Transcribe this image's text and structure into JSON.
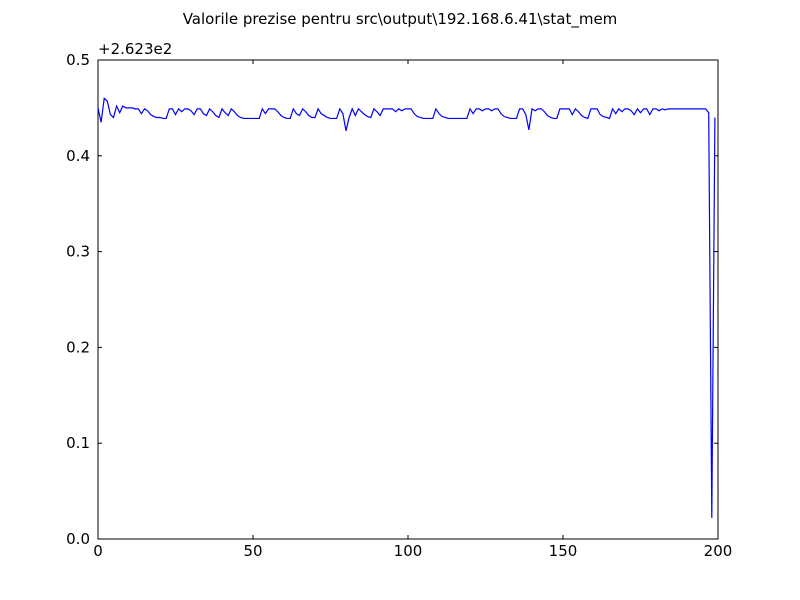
{
  "chart_data": {
    "type": "line",
    "title": "Valorile prezise pentru src\\output\\192.168.6.41\\stat_mem",
    "offset_label": "+2.623e2",
    "x": [
      0,
      1,
      2,
      3,
      4,
      5,
      6,
      7,
      8,
      9,
      10,
      11,
      12,
      13,
      14,
      15,
      16,
      17,
      18,
      19,
      20,
      21,
      22,
      23,
      24,
      25,
      26,
      27,
      28,
      29,
      30,
      31,
      32,
      33,
      34,
      35,
      36,
      37,
      38,
      39,
      40,
      41,
      42,
      43,
      44,
      45,
      46,
      47,
      48,
      49,
      50,
      51,
      52,
      53,
      54,
      55,
      56,
      57,
      58,
      59,
      60,
      61,
      62,
      63,
      64,
      65,
      66,
      67,
      68,
      69,
      70,
      71,
      72,
      73,
      74,
      75,
      76,
      77,
      78,
      79,
      80,
      81,
      82,
      83,
      84,
      85,
      86,
      87,
      88,
      89,
      90,
      91,
      92,
      93,
      94,
      95,
      96,
      97,
      98,
      99,
      100,
      101,
      102,
      103,
      104,
      105,
      106,
      107,
      108,
      109,
      110,
      111,
      112,
      113,
      114,
      115,
      116,
      117,
      118,
      119,
      120,
      121,
      122,
      123,
      124,
      125,
      126,
      127,
      128,
      129,
      130,
      131,
      132,
      133,
      134,
      135,
      136,
      137,
      138,
      139,
      140,
      141,
      142,
      143,
      144,
      145,
      146,
      147,
      148,
      149,
      150,
      151,
      152,
      153,
      154,
      155,
      156,
      157,
      158,
      159,
      160,
      161,
      162,
      163,
      164,
      165,
      166,
      167,
      168,
      169,
      170,
      171,
      172,
      173,
      174,
      175,
      176,
      177,
      178,
      179,
      180,
      181,
      182,
      183,
      184,
      185,
      186,
      187,
      188,
      189,
      190,
      191,
      192,
      193,
      194,
      195,
      196,
      197,
      198,
      199
    ],
    "series": [
      {
        "color": "#0000ff",
        "values": [
          0.45,
          0.435,
          0.46,
          0.457,
          0.443,
          0.44,
          0.452,
          0.445,
          0.452,
          0.45,
          0.45,
          0.45,
          0.449,
          0.449,
          0.444,
          0.449,
          0.447,
          0.443,
          0.441,
          0.44,
          0.44,
          0.439,
          0.439,
          0.449,
          0.449,
          0.443,
          0.449,
          0.446,
          0.449,
          0.449,
          0.447,
          0.443,
          0.449,
          0.449,
          0.444,
          0.442,
          0.449,
          0.446,
          0.442,
          0.44,
          0.449,
          0.445,
          0.442,
          0.449,
          0.446,
          0.442,
          0.44,
          0.439,
          0.439,
          0.439,
          0.439,
          0.439,
          0.439,
          0.449,
          0.444,
          0.449,
          0.449,
          0.449,
          0.446,
          0.442,
          0.44,
          0.439,
          0.439,
          0.449,
          0.444,
          0.442,
          0.449,
          0.446,
          0.442,
          0.44,
          0.44,
          0.449,
          0.444,
          0.442,
          0.44,
          0.439,
          0.439,
          0.439,
          0.449,
          0.444,
          0.426,
          0.44,
          0.449,
          0.442,
          0.449,
          0.446,
          0.443,
          0.441,
          0.44,
          0.449,
          0.446,
          0.442,
          0.449,
          0.449,
          0.449,
          0.449,
          0.446,
          0.449,
          0.447,
          0.449,
          0.449,
          0.449,
          0.444,
          0.441,
          0.44,
          0.439,
          0.439,
          0.439,
          0.439,
          0.449,
          0.444,
          0.441,
          0.44,
          0.439,
          0.439,
          0.439,
          0.439,
          0.439,
          0.439,
          0.439,
          0.449,
          0.444,
          0.449,
          0.449,
          0.447,
          0.449,
          0.449,
          0.447,
          0.449,
          0.449,
          0.444,
          0.441,
          0.44,
          0.439,
          0.439,
          0.439,
          0.449,
          0.449,
          0.443,
          0.427,
          0.449,
          0.447,
          0.449,
          0.449,
          0.446,
          0.442,
          0.44,
          0.439,
          0.439,
          0.449,
          0.449,
          0.449,
          0.449,
          0.443,
          0.449,
          0.446,
          0.442,
          0.44,
          0.439,
          0.449,
          0.449,
          0.449,
          0.443,
          0.441,
          0.44,
          0.439,
          0.449,
          0.444,
          0.449,
          0.446,
          0.449,
          0.449,
          0.447,
          0.443,
          0.449,
          0.445,
          0.449,
          0.449,
          0.443,
          0.449,
          0.449,
          0.447,
          0.449,
          0.448,
          0.449,
          0.449,
          0.449,
          0.449,
          0.449,
          0.449,
          0.449,
          0.449,
          0.449,
          0.449,
          0.449,
          0.449,
          0.449,
          0.445,
          0.022,
          0.44
        ]
      }
    ],
    "xlim": [
      0,
      200
    ],
    "xticks": [
      0,
      50,
      100,
      150,
      200
    ],
    "ylim": [
      0,
      0.5
    ],
    "yticks": [
      {
        "value": 0,
        "label": "0.0"
      },
      0.1,
      0.2,
      0.3,
      0.4,
      0.5
    ],
    "grid": false
  }
}
